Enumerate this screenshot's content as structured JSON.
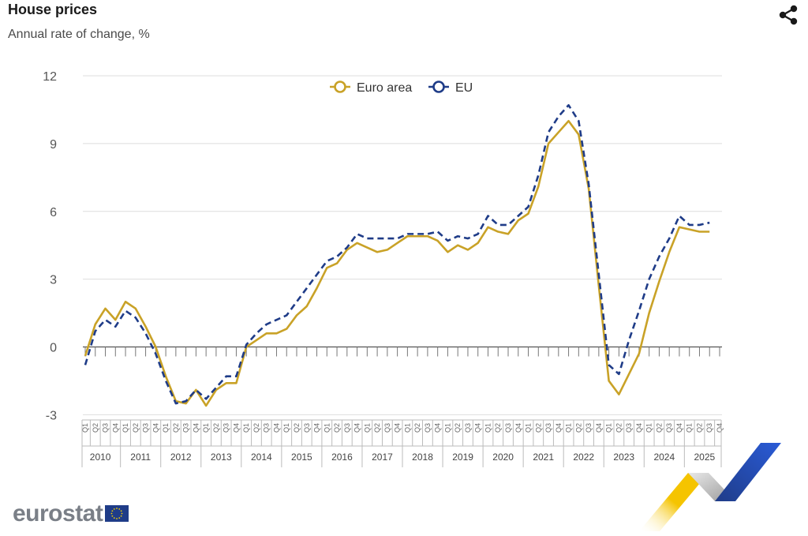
{
  "header": {
    "title": "House prices",
    "subtitle": "Annual rate of change, %",
    "share_icon": "share-icon"
  },
  "footer": {
    "logo_text": "eurostat",
    "flag_icon": "eu-flag-icon"
  },
  "chart_data": {
    "type": "line",
    "ylim": [
      -3,
      12
    ],
    "yticks": [
      "12",
      "9",
      "6",
      "3",
      "0",
      "-3"
    ],
    "grid": true,
    "legend_position": "top-center",
    "quarter_labels": [
      "Q1",
      "Q2",
      "Q3",
      "Q4"
    ],
    "years": [
      "2010",
      "2011",
      "2012",
      "2013",
      "2014",
      "2015",
      "2016",
      "2017",
      "2018",
      "2019",
      "2020",
      "2021",
      "2022",
      "2023",
      "2024",
      "2025"
    ],
    "series": [
      {
        "name": "Euro area",
        "color": "#c9a227",
        "style": "solid",
        "values": [
          -0.4,
          1.0,
          1.7,
          1.2,
          2.0,
          1.7,
          0.9,
          0.0,
          -1.3,
          -2.4,
          -2.5,
          -1.9,
          -2.6,
          -1.9,
          -1.6,
          -1.6,
          0.0,
          0.3,
          0.6,
          0.6,
          0.8,
          1.4,
          1.8,
          2.6,
          3.5,
          3.7,
          4.3,
          4.6,
          4.4,
          4.2,
          4.3,
          4.6,
          4.9,
          4.9,
          4.9,
          4.7,
          4.2,
          4.5,
          4.3,
          4.6,
          5.3,
          5.1,
          5.0,
          5.6,
          5.9,
          7.1,
          9.0,
          9.5,
          10.0,
          9.4,
          7.0,
          2.7,
          -1.5,
          -2.1,
          -1.2,
          -0.3,
          1.5,
          2.9,
          4.2,
          5.3,
          5.2,
          5.1,
          5.1
        ]
      },
      {
        "name": "EU",
        "color": "#1f3c88",
        "style": "dashed",
        "values": [
          -0.8,
          0.7,
          1.2,
          0.9,
          1.6,
          1.3,
          0.6,
          -0.3,
          -1.5,
          -2.5,
          -2.4,
          -1.9,
          -2.3,
          -1.8,
          -1.3,
          -1.3,
          0.1,
          0.6,
          1.0,
          1.2,
          1.4,
          2.0,
          2.6,
          3.2,
          3.8,
          4.0,
          4.4,
          5.0,
          4.8,
          4.8,
          4.8,
          4.8,
          5.0,
          5.0,
          5.0,
          5.1,
          4.7,
          4.9,
          4.8,
          5.0,
          5.8,
          5.4,
          5.4,
          5.8,
          6.2,
          7.6,
          9.5,
          10.2,
          10.7,
          10.0,
          7.2,
          3.2,
          -0.8,
          -1.2,
          0.3,
          1.6,
          3.0,
          4.0,
          4.8,
          5.8,
          5.4,
          5.4,
          5.5
        ]
      }
    ]
  }
}
